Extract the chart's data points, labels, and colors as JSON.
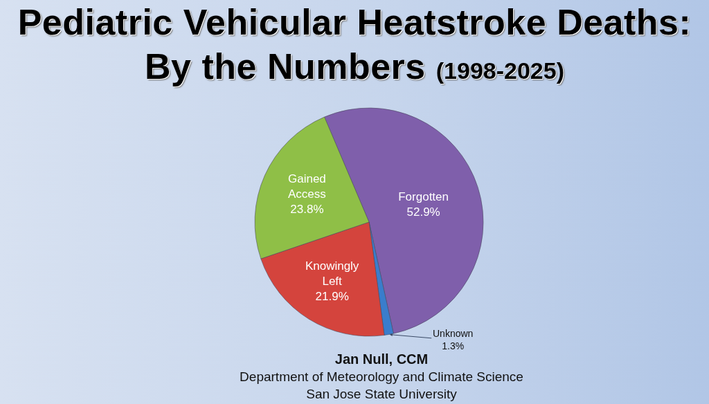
{
  "chart_data": {
    "type": "pie",
    "title": "Pediatric Vehicular Heatstroke Deaths: By the Numbers",
    "subtitle": "(1998-2025)",
    "categories": [
      "Forgotten",
      "Unknown",
      "Knowingly Left",
      "Gained Access"
    ],
    "values": [
      52.9,
      1.3,
      21.9,
      23.8
    ],
    "value_labels": [
      "52.9%",
      "1.3%",
      "21.9%",
      "23.8%"
    ],
    "colors": [
      "#7f5fab",
      "#3a7dcc",
      "#d4443d",
      "#8fbf47"
    ],
    "annotations": [
      "Jan Null, CCM",
      "Department of Meteorology and Climate Science",
      "San Jose State University"
    ]
  }
}
